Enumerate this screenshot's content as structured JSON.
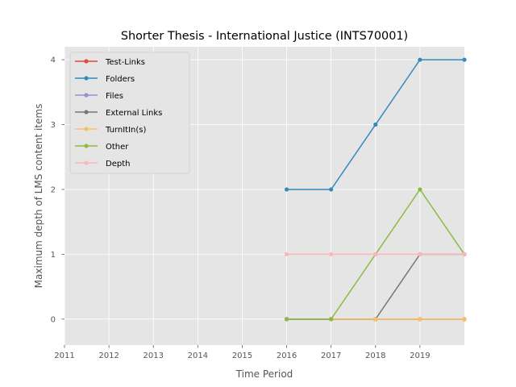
{
  "chart_data": {
    "type": "line",
    "title": "Shorter Thesis - International Justice (INTS70001)",
    "xlabel": "Time Period",
    "ylabel": "Maximum depth of LMS content items",
    "xlim": [
      2011,
      2020
    ],
    "ylim": [
      -0.4,
      4.2
    ],
    "x_ticks": [
      "2011",
      "2012",
      "2013",
      "2014",
      "2015",
      "2016",
      "2017",
      "2018",
      "2019"
    ],
    "y_ticks": [
      "0",
      "1",
      "2",
      "3",
      "4"
    ],
    "grid": true,
    "legend_position": "upper-left",
    "series": [
      {
        "name": "Test-Links",
        "color": "#E24A33",
        "x": [
          2016,
          2017,
          2018,
          2019,
          2020
        ],
        "values": [
          0,
          0,
          0,
          0,
          0
        ]
      },
      {
        "name": "Folders",
        "color": "#348ABD",
        "x": [
          2016,
          2017,
          2018,
          2019,
          2020
        ],
        "values": [
          2,
          2,
          3,
          4,
          4
        ]
      },
      {
        "name": "Files",
        "color": "#988ED5",
        "x": [
          2016,
          2017,
          2018,
          2019,
          2020
        ],
        "values": [
          0,
          0,
          0,
          0,
          0
        ]
      },
      {
        "name": "External Links",
        "color": "#777777",
        "x": [
          2016,
          2017,
          2018,
          2019,
          2020
        ],
        "values": [
          0,
          0,
          0,
          1,
          1
        ]
      },
      {
        "name": "TurnItIn(s)",
        "color": "#FBC15E",
        "x": [
          2017,
          2018,
          2019,
          2020
        ],
        "values": [
          0,
          0,
          0,
          0
        ]
      },
      {
        "name": "Other",
        "color": "#8EBA42",
        "x": [
          2016,
          2017,
          2018,
          2019,
          2020
        ],
        "values": [
          0,
          0,
          1,
          2,
          1
        ]
      },
      {
        "name": "Depth",
        "color": "#FFB5B8",
        "x": [
          2016,
          2017,
          2018,
          2019,
          2020
        ],
        "values": [
          1,
          1,
          1,
          1,
          1
        ]
      }
    ]
  }
}
